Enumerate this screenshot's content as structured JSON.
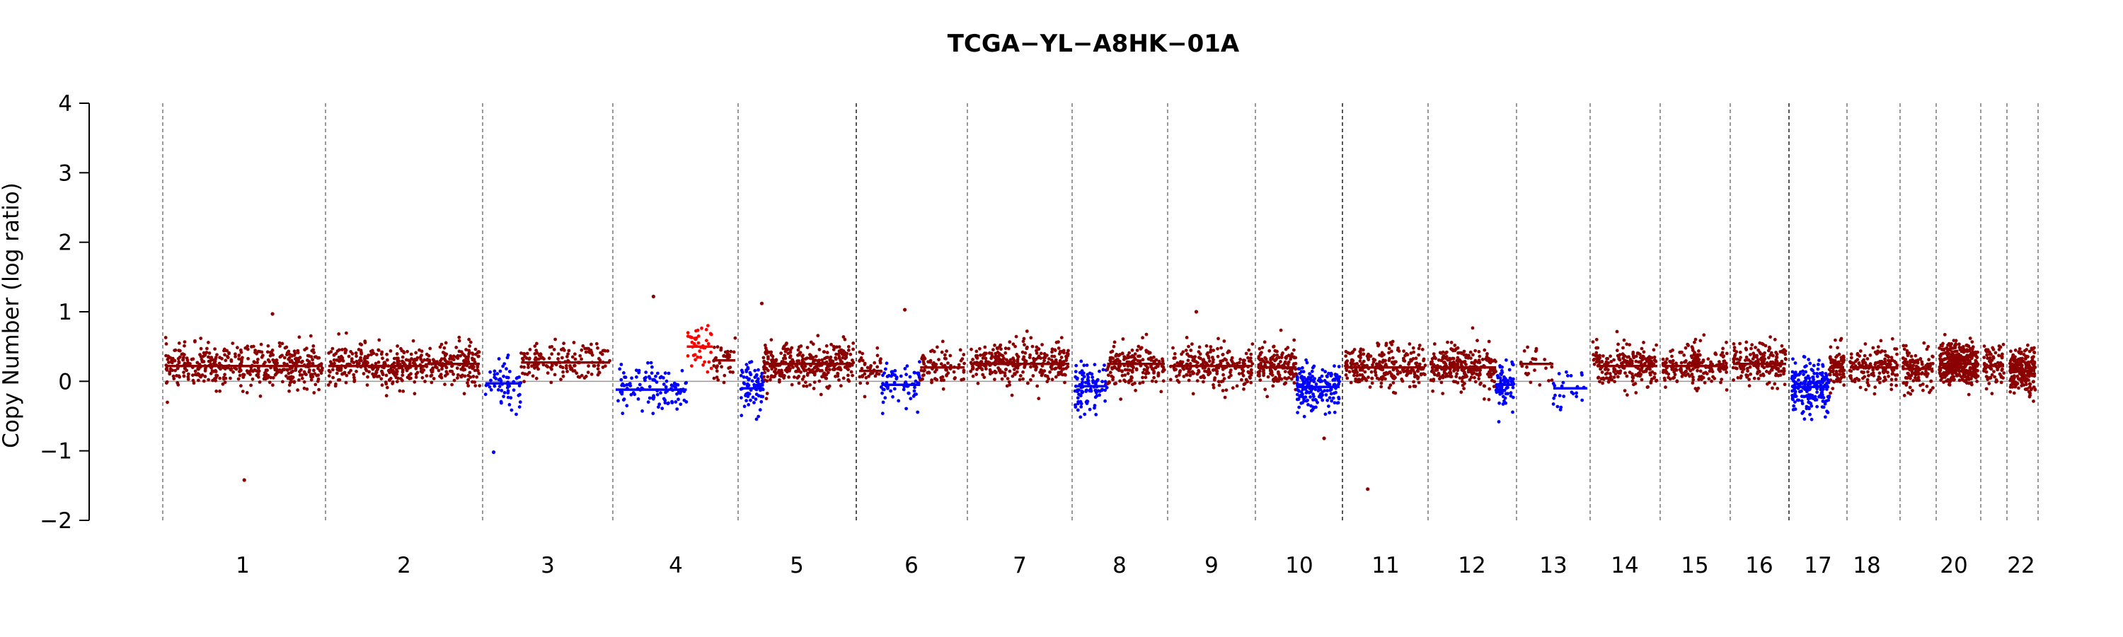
{
  "chart_data": {
    "type": "scatter",
    "title": "TCGA−YL−A8HK−01A",
    "xlabel": "",
    "ylabel": "Copy Number (log ratio)",
    "ylim": [
      -2,
      4
    ],
    "y_ticks": [
      -2,
      -1,
      0,
      1,
      2,
      3,
      4
    ],
    "y_tick_labels": [
      "−2",
      "−1",
      "0",
      "1",
      "2",
      "3",
      "4"
    ],
    "chromosome_labels": [
      "1",
      "2",
      "3",
      "4",
      "5",
      "6",
      "7",
      "8",
      "9",
      "10",
      "11",
      "12",
      "13",
      "14",
      "15",
      "16",
      "17",
      "18",
      "20",
      "22"
    ],
    "colors": {
      "neutral": "#8b0000",
      "loss": "#0000ff",
      "gain": "#ff0000",
      "zero_line": "#999999",
      "boundary": "#555555"
    },
    "chromosomes": [
      {
        "chr": "1",
        "segments": [
          {
            "mean": 0.22,
            "status": "neutral",
            "n": 440
          }
        ]
      },
      {
        "chr": "2",
        "segments": [
          {
            "mean": 0.22,
            "status": "neutral",
            "n": 300
          },
          {
            "mean": 0.25,
            "status": "neutral",
            "n": 160
          }
        ]
      },
      {
        "chr": "3",
        "segments": [
          {
            "mean": -0.03,
            "status": "loss",
            "n": 60
          },
          {
            "mean": 0.27,
            "status": "neutral",
            "n": 150
          }
        ]
      },
      {
        "chr": "4",
        "segments": [
          {
            "mean": -0.12,
            "status": "loss",
            "n": 80
          },
          {
            "mean": -0.12,
            "status": "loss",
            "n": 30
          },
          {
            "mean": 0.5,
            "status": "gain",
            "n": 40
          },
          {
            "mean": 0.3,
            "status": "neutral",
            "n": 35
          }
        ]
      },
      {
        "chr": "5",
        "segments": [
          {
            "mean": -0.1,
            "status": "loss",
            "n": 80
          },
          {
            "mean": 0.25,
            "status": "neutral",
            "n": 320
          }
        ]
      },
      {
        "chr": "6",
        "segments": [
          {
            "mean": 0.15,
            "status": "neutral",
            "n": 40
          },
          {
            "mean": -0.05,
            "status": "loss",
            "n": 70
          },
          {
            "mean": 0.2,
            "status": "neutral",
            "n": 80
          }
        ]
      },
      {
        "chr": "7",
        "segments": [
          {
            "mean": 0.25,
            "status": "neutral",
            "n": 300
          }
        ]
      },
      {
        "chr": "8",
        "segments": [
          {
            "mean": -0.07,
            "status": "loss",
            "n": 100
          },
          {
            "mean": 0.25,
            "status": "neutral",
            "n": 180
          }
        ]
      },
      {
        "chr": "9",
        "segments": [
          {
            "mean": 0.22,
            "status": "neutral",
            "n": 220
          }
        ]
      },
      {
        "chr": "10",
        "segments": [
          {
            "mean": 0.2,
            "status": "neutral",
            "n": 160
          },
          {
            "mean": -0.08,
            "status": "loss",
            "n": 180
          }
        ]
      },
      {
        "chr": "11",
        "segments": [
          {
            "mean": 0.2,
            "status": "neutral",
            "n": 260
          }
        ]
      },
      {
        "chr": "12",
        "segments": [
          {
            "mean": 0.2,
            "status": "neutral",
            "n": 260
          },
          {
            "mean": -0.05,
            "status": "loss",
            "n": 70
          }
        ]
      },
      {
        "chr": "13",
        "segments": [
          {
            "mean": 0.25,
            "status": "neutral",
            "n": 25
          },
          {
            "mean": -0.1,
            "status": "loss",
            "n": 25
          }
        ]
      },
      {
        "chr": "14",
        "segments": [
          {
            "mean": 0.32,
            "status": "neutral",
            "n": 20
          },
          {
            "mean": 0.22,
            "status": "neutral",
            "n": 190
          }
        ]
      },
      {
        "chr": "15",
        "segments": [
          {
            "mean": 0.22,
            "status": "neutral",
            "n": 200
          }
        ]
      },
      {
        "chr": "16",
        "segments": [
          {
            "mean": 0.25,
            "status": "neutral",
            "n": 180
          }
        ]
      },
      {
        "chr": "17",
        "segments": [
          {
            "mean": -0.08,
            "status": "loss",
            "n": 200
          },
          {
            "mean": 0.2,
            "status": "neutral",
            "n": 80
          }
        ]
      },
      {
        "chr": "18",
        "segments": [
          {
            "mean": 0.2,
            "status": "neutral",
            "n": 160
          }
        ]
      },
      {
        "chr": "19",
        "segments": [
          {
            "mean": 0.18,
            "status": "neutral",
            "n": 120
          }
        ]
      },
      {
        "chr": "20",
        "segments": [
          {
            "mean": 0.25,
            "status": "neutral",
            "n": 360
          }
        ]
      },
      {
        "chr": "21",
        "segments": [
          {
            "mean": 0.22,
            "status": "neutral",
            "n": 80
          }
        ]
      },
      {
        "chr": "22",
        "segments": [
          {
            "mean": 0.15,
            "status": "neutral",
            "n": 230
          }
        ]
      }
    ],
    "outliers": [
      {
        "chr": "1",
        "y": -1.42
      },
      {
        "chr": "10",
        "y": -0.82
      },
      {
        "chr": "11",
        "y": -1.55
      },
      {
        "chr": "3",
        "y": -1.02
      },
      {
        "chr": "4",
        "y": 1.22
      },
      {
        "chr": "5",
        "y": 1.12
      },
      {
        "chr": "6",
        "y": 1.03
      },
      {
        "chr": "1",
        "y": 0.97
      },
      {
        "chr": "9",
        "y": 1.0
      }
    ]
  }
}
